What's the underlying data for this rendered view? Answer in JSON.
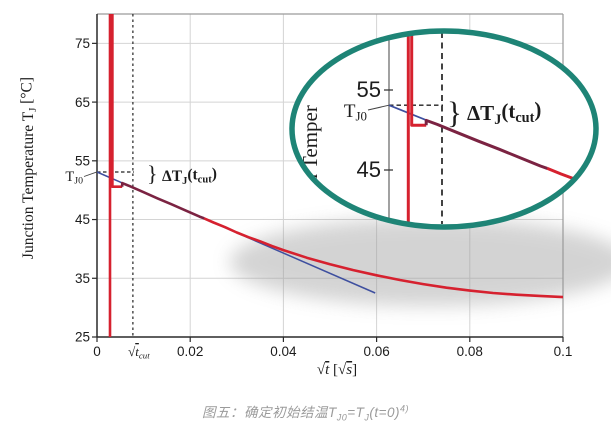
{
  "figure": {
    "caption": {
      "fig_label": "图五：",
      "part1": "确定初始结温T",
      "sub1": "J0",
      "part2": "=T",
      "sub2": "J",
      "part3": "(t=0)",
      "sup": "4)"
    }
  },
  "colors": {
    "red": "#d6212f",
    "maroon": "#7b2342",
    "blue": "#3e4f9f",
    "teal": "#1e8476",
    "grid": "#d4d4d4",
    "frame": "#9a9a9a",
    "axis": "#2a2a2a",
    "text": "#1c1c1c",
    "caption": "#9b9b9b",
    "shadow": "#999999",
    "inset_axis": "#555555",
    "plot_bg": "#ffffff"
  },
  "chart_data": {
    "type": "line",
    "title": "",
    "xlabel": "√t [√s]",
    "ylabel": "Junction Temperature TJ [°C]",
    "xlim": [
      0,
      0.1
    ],
    "ylim": [
      25,
      80
    ],
    "grid": true,
    "x_ticks": [
      0,
      0.02,
      0.04,
      0.06,
      0.08,
      0.1
    ],
    "x_tick_labels": [
      "0",
      "0.02",
      "0.04",
      "0.06",
      "0.08",
      "0.1"
    ],
    "y_ticks": [
      25,
      35,
      45,
      55,
      65,
      75
    ],
    "y_tick_labels": [
      "25",
      "35",
      "45",
      "55",
      "65",
      "75"
    ],
    "sqrt_t_cut": 0.0077,
    "T_J0": 53.1,
    "delta_T_J_at_t_cut": 2.5,
    "series": [
      {
        "name": "measured cooling curve",
        "color_key": "red",
        "overlap_color_key": "maroon",
        "overlap_range": [
          0.0053,
          0.0232
        ],
        "points": [
          [
            0.0028,
            25
          ],
          [
            0.0028,
            80
          ],
          [
            0.0033,
            80
          ],
          [
            0.0033,
            50.6
          ],
          [
            0.0054,
            50.6
          ],
          [
            0.0054,
            51.2
          ],
          [
            0.007,
            50.7
          ],
          [
            0.01,
            49.65
          ],
          [
            0.013,
            48.6
          ],
          [
            0.016,
            47.6
          ],
          [
            0.019,
            46.55
          ],
          [
            0.022,
            45.5
          ],
          [
            0.023,
            45.2
          ],
          [
            0.025,
            44.5
          ],
          [
            0.0275,
            43.7
          ],
          [
            0.03,
            42.8
          ],
          [
            0.0325,
            42.0
          ],
          [
            0.035,
            41.3
          ],
          [
            0.0375,
            40.5
          ],
          [
            0.04,
            39.8
          ],
          [
            0.045,
            38.5
          ],
          [
            0.05,
            37.4
          ],
          [
            0.055,
            36.4
          ],
          [
            0.06,
            35.5
          ],
          [
            0.065,
            34.7
          ],
          [
            0.07,
            34.0
          ],
          [
            0.075,
            33.4
          ],
          [
            0.08,
            32.9
          ],
          [
            0.085,
            32.5
          ],
          [
            0.09,
            32.2
          ],
          [
            0.095,
            32.0
          ],
          [
            0.1,
            31.8
          ]
        ]
      },
      {
        "name": "linear √t extrapolation line",
        "color_key": "blue",
        "points": [
          [
            0,
            53.1
          ],
          [
            0.0597,
            32.5
          ]
        ]
      }
    ],
    "labels": {
      "tj0_parts": [
        [
          "T",
          0
        ],
        [
          "J0",
          1
        ]
      ],
      "delta_parts": [
        [
          "ΔT",
          0
        ],
        [
          "J",
          1
        ],
        [
          "(t",
          0
        ],
        [
          "cut",
          1
        ],
        [
          ")",
          0
        ]
      ],
      "sqrt_tcut_parts": [
        [
          "√",
          0
        ],
        [
          "t",
          2
        ],
        [
          "cut",
          3
        ]
      ],
      "xlabel_parts": [
        [
          "√",
          0
        ],
        [
          "t",
          2
        ],
        [
          "  [",
          0
        ],
        [
          "√",
          0
        ],
        [
          "s",
          2
        ],
        [
          "]",
          0
        ]
      ],
      "ylabel_parts": [
        [
          "Junction Temperature T",
          0
        ],
        [
          "J",
          1
        ],
        [
          " [°C]",
          0
        ]
      ],
      "brace": "}"
    }
  },
  "inset": {
    "type": "magnifier",
    "y_ticks": [
      55,
      45
    ],
    "y_tick_labels": [
      "55",
      "45"
    ],
    "ylabel_visible": "on Temper"
  }
}
